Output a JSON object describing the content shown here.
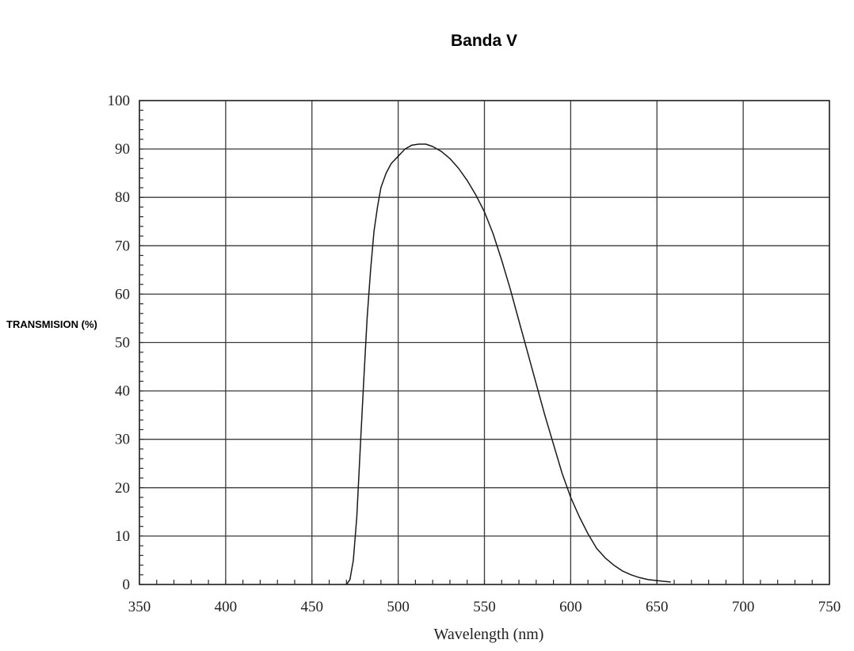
{
  "chart_data": {
    "type": "line",
    "title": "Banda V",
    "xlabel": "Wavelength (nm)",
    "ylabel": "TRANSMISION (%)",
    "xlim": [
      350,
      750
    ],
    "ylim": [
      0,
      100
    ],
    "grid": true,
    "x_ticks": [
      350,
      400,
      450,
      500,
      550,
      600,
      650,
      700,
      750
    ],
    "y_ticks": [
      0,
      10,
      20,
      30,
      40,
      50,
      60,
      70,
      80,
      90,
      100
    ],
    "series": [
      {
        "x": [
          470,
          472,
          474,
          476,
          478,
          480,
          482,
          484,
          486,
          488,
          490,
          493,
          496,
          500,
          504,
          508,
          512,
          516,
          520,
          525,
          530,
          535,
          540,
          545,
          550,
          555,
          560,
          565,
          570,
          575,
          580,
          585,
          590,
          595,
          600,
          605,
          610,
          615,
          620,
          625,
          630,
          635,
          640,
          645,
          650,
          655,
          658
        ],
        "y": [
          0,
          1,
          5,
          14,
          28,
          42,
          55,
          65,
          73,
          78,
          82,
          85,
          87,
          88.5,
          90,
          90.8,
          91,
          91,
          90.5,
          89.5,
          88,
          86,
          83.5,
          80.5,
          77,
          72.5,
          67,
          61,
          54.5,
          48,
          41.5,
          35,
          29,
          23,
          18,
          14,
          10.5,
          7.5,
          5.5,
          4,
          2.8,
          2,
          1.4,
          1,
          0.8,
          0.6,
          0.5
        ]
      }
    ]
  }
}
